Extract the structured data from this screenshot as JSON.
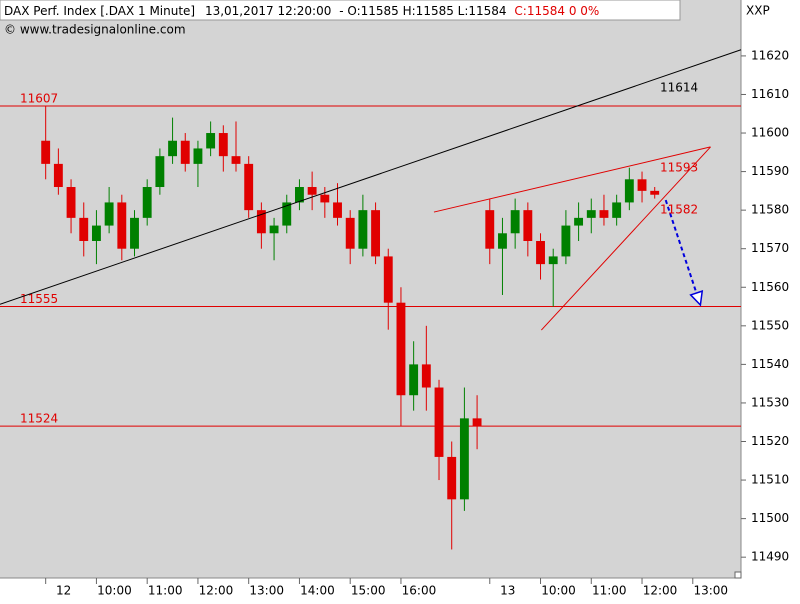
{
  "chart_data": {
    "type": "candlestick",
    "title": "DAX Perf. Index [.DAX  1 Minute]",
    "timestamp": "13,01,2017 12:20:00",
    "ohlc_label": "- O:11585 H:11585 L:11584",
    "change_label": "C:11584 0 0%",
    "source": "© www.tradesignalonline.com",
    "corner_label": "XXP",
    "up_color": "#008000",
    "down_color": "#e00000",
    "x": [
      0,
      15,
      30,
      45,
      60,
      75,
      90,
      105,
      120,
      135,
      150,
      165,
      180,
      195,
      210,
      225,
      240,
      255,
      270,
      285,
      300,
      315,
      330,
      345,
      360,
      375,
      390,
      405,
      420,
      435,
      450,
      465,
      480,
      495,
      510,
      525,
      540,
      555,
      570,
      585,
      600,
      615,
      630,
      645,
      660,
      675,
      690,
      705,
      720
    ],
    "open": [
      11598,
      11592,
      11586,
      11578,
      11572,
      11576,
      11582,
      11570,
      11578,
      11586,
      11594,
      11598,
      11592,
      11596,
      11600,
      11594,
      11592,
      11580,
      11574,
      11576,
      11582,
      11586,
      11584,
      11582,
      11578,
      11570,
      11580,
      11568,
      11556,
      11532,
      11540,
      11534,
      11516,
      11505,
      11526,
      11580,
      11570,
      11574,
      11580,
      11572,
      11566,
      11568,
      11576,
      11578,
      11580,
      11578,
      11582,
      11588,
      11585
    ],
    "high": [
      11607,
      11596,
      11588,
      11582,
      11580,
      11586,
      11584,
      11580,
      11588,
      11596,
      11604,
      11600,
      11598,
      11603,
      11602,
      11603,
      11594,
      11582,
      11578,
      11584,
      11588,
      11590,
      11586,
      11587,
      11580,
      11584,
      11582,
      11570,
      11560,
      11546,
      11550,
      11536,
      11520,
      11534,
      11532,
      11583,
      11578,
      11583,
      11582,
      11574,
      11570,
      11580,
      11582,
      11583,
      11584,
      11584,
      11591,
      11590,
      11586
    ],
    "low": [
      11588,
      11584,
      11574,
      11568,
      11566,
      11574,
      11567,
      11568,
      11576,
      11584,
      11592,
      11590,
      11586,
      11594,
      11590,
      11590,
      11578,
      11570,
      11567,
      11574,
      11580,
      11580,
      11578,
      11576,
      11566,
      11568,
      11566,
      11549,
      11524,
      11528,
      11528,
      11510,
      11492,
      11502,
      11518,
      11566,
      11558,
      11570,
      11568,
      11562,
      11555,
      11566,
      11572,
      11574,
      11576,
      11576,
      11580,
      11582,
      11583
    ],
    "close": [
      11592,
      11586,
      11578,
      11572,
      11576,
      11582,
      11570,
      11578,
      11586,
      11594,
      11598,
      11592,
      11596,
      11600,
      11594,
      11592,
      11580,
      11574,
      11576,
      11582,
      11586,
      11584,
      11582,
      11578,
      11570,
      11580,
      11568,
      11556,
      11532,
      11540,
      11534,
      11516,
      11505,
      11526,
      11524,
      11570,
      11574,
      11580,
      11572,
      11566,
      11568,
      11576,
      11578,
      11580,
      11578,
      11582,
      11588,
      11585,
      11584
    ],
    "xlim": [
      -54,
      822
    ],
    "xticks": [
      {
        "value": 0,
        "label": "12"
      },
      {
        "value": 60,
        "label": "10:00"
      },
      {
        "value": 120,
        "label": "11:00"
      },
      {
        "value": 180,
        "label": "12:00"
      },
      {
        "value": 240,
        "label": "13:00"
      },
      {
        "value": 300,
        "label": "14:00"
      },
      {
        "value": 360,
        "label": "15:00"
      },
      {
        "value": 420,
        "label": "16:00"
      },
      {
        "value": 525,
        "label": "13"
      },
      {
        "value": 585,
        "label": "10:00"
      },
      {
        "value": 645,
        "label": "11:00"
      },
      {
        "value": 705,
        "label": "12:00"
      },
      {
        "value": 765,
        "label": "13:00"
      }
    ],
    "ylim": [
      11484.6,
      11634.5
    ],
    "yticks": [
      11490,
      11500,
      11510,
      11520,
      11530,
      11540,
      11550,
      11560,
      11570,
      11580,
      11590,
      11600,
      11610,
      11620
    ],
    "levels": [
      11607,
      11555,
      11524
    ],
    "level_color": "#e00000",
    "trendlines": [
      {
        "x": [
          -54,
          822
        ],
        "y": [
          11555.6,
          11621.6
        ],
        "color": "#000000"
      },
      {
        "x": [
          459,
          786
        ],
        "y": [
          11579.5,
          11596.4
        ],
        "color": "#e00000"
      },
      {
        "x": [
          586,
          786
        ],
        "y": [
          11548.9,
          11596.4
        ],
        "color": "#e00000"
      },
      {
        "x": [
          733,
          774
        ],
        "y": [
          11582.6,
          11555.4
        ],
        "color": "#0000dd",
        "dashed": true,
        "arrow": true
      }
    ],
    "annotations": [
      {
        "text": "11614",
        "color": "#000000"
      },
      {
        "text": "11593",
        "color": "#e00000"
      },
      {
        "text": "11582",
        "color": "#e00000"
      }
    ]
  }
}
